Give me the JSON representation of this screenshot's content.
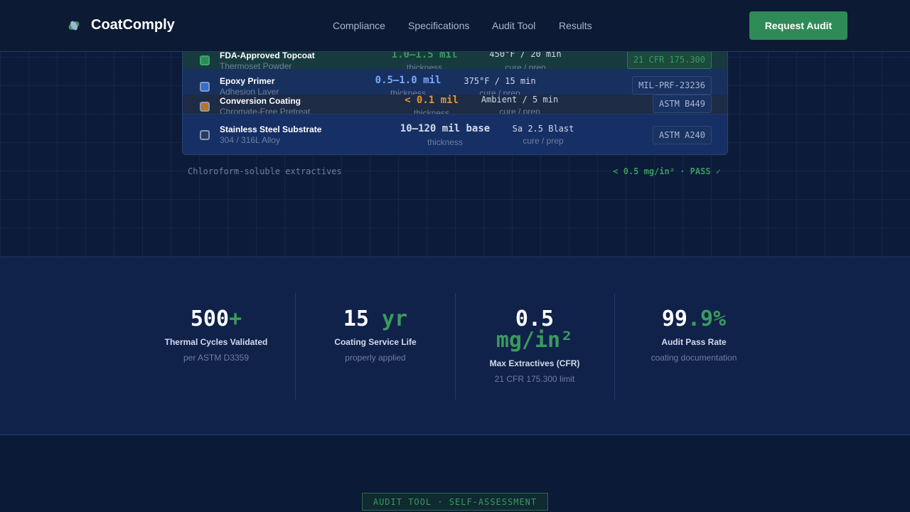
{
  "header": {
    "brand": "CoatComply",
    "nav": [
      "Compliance",
      "Specifications",
      "Audit Tool",
      "Results"
    ],
    "cta": "Request Audit"
  },
  "layers": [
    {
      "name": "FDA-Approved Topcoat",
      "sub": "Thermoset Powder",
      "thickness": "1.0–1.5 mil",
      "thickness_label": "thickness",
      "cure": "450°F / 20 min",
      "cure_label": "cure / prep",
      "standard": "21 CFR 175.300"
    },
    {
      "name": "Epoxy Primer",
      "sub": "Adhesion Layer",
      "thickness": "0.5–1.0 mil",
      "thickness_label": "thickness",
      "cure": "375°F / 15 min",
      "cure_label": "cure / prep",
      "standard": "MIL-PRF-23236"
    },
    {
      "name": "Conversion Coating",
      "sub": "Chromate-Free Pretreat",
      "thickness": "< 0.1 mil",
      "thickness_label": "thickness",
      "cure": "Ambient / 5 min",
      "cure_label": "cure / prep",
      "standard": "ASTM B449"
    },
    {
      "name": "Stainless Steel Substrate",
      "sub": "304 / 316L Alloy",
      "thickness": "10–120 mil base",
      "thickness_label": "thickness",
      "cure": "Sa 2.5 Blast",
      "cure_label": "cure / prep",
      "standard": "ASTM A240"
    }
  ],
  "test": {
    "label": "Chloroform-soluble extractives",
    "result": "< 0.5 mg/in² · PASS ✓"
  },
  "stats": [
    {
      "number": "500",
      "suffix": "+",
      "label": "Thermal Cycles Validated",
      "sub": "per ASTM D3359"
    },
    {
      "number": "15 ",
      "suffix": "yr",
      "label": "Coating Service Life",
      "sub": "properly applied"
    },
    {
      "number": "0.5 ",
      "suffix": "mg/in²",
      "label": "Max Extractives (CFR)",
      "sub": "21 CFR 175.300 limit"
    },
    {
      "number": "99",
      "suffix": ".9%",
      "label": "Audit Pass Rate",
      "sub": "coating documentation"
    }
  ],
  "badge": "AUDIT TOOL · SELF-ASSESSMENT"
}
